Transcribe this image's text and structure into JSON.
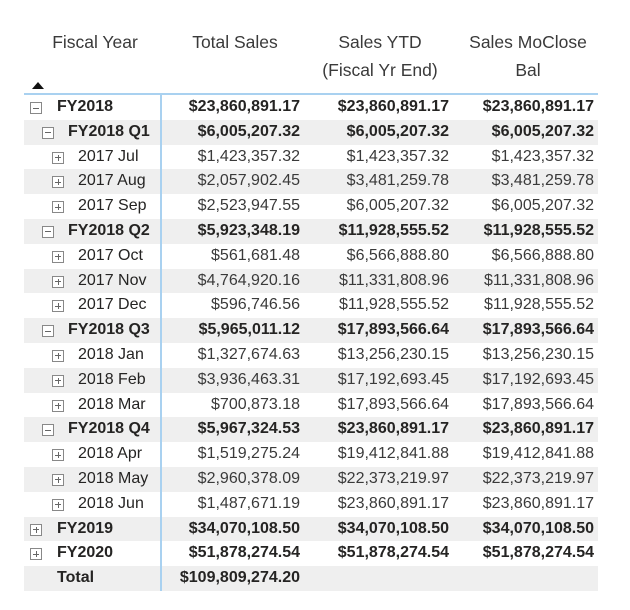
{
  "headers": {
    "fiscal_year": "Fiscal Year",
    "total_sales": "Total Sales",
    "sales_ytd": [
      "Sales YTD",
      "(Fiscal Yr End)"
    ],
    "sales_moclose": [
      "Sales MoClose",
      "Bal"
    ]
  },
  "sort": {
    "column": "Fiscal Year",
    "direction": "ascending"
  },
  "rows": [
    {
      "level": 0,
      "label": "FY2018",
      "expand": "collapse",
      "bold": true,
      "total": "$23,860,891.17",
      "ytd": "$23,860,891.17",
      "moclose": "$23,860,891.17"
    },
    {
      "level": 1,
      "label": "FY2018 Q1",
      "expand": "collapse",
      "bold": true,
      "total": "$6,005,207.32",
      "ytd": "$6,005,207.32",
      "moclose": "$6,005,207.32"
    },
    {
      "level": 2,
      "label": "2017 Jul",
      "expand": "expand",
      "bold": false,
      "total": "$1,423,357.32",
      "ytd": "$1,423,357.32",
      "moclose": "$1,423,357.32"
    },
    {
      "level": 2,
      "label": "2017 Aug",
      "expand": "expand",
      "bold": false,
      "total": "$2,057,902.45",
      "ytd": "$3,481,259.78",
      "moclose": "$3,481,259.78"
    },
    {
      "level": 2,
      "label": "2017 Sep",
      "expand": "expand",
      "bold": false,
      "total": "$2,523,947.55",
      "ytd": "$6,005,207.32",
      "moclose": "$6,005,207.32"
    },
    {
      "level": 1,
      "label": "FY2018 Q2",
      "expand": "collapse",
      "bold": true,
      "total": "$5,923,348.19",
      "ytd": "$11,928,555.52",
      "moclose": "$11,928,555.52"
    },
    {
      "level": 2,
      "label": "2017 Oct",
      "expand": "expand",
      "bold": false,
      "total": "$561,681.48",
      "ytd": "$6,566,888.80",
      "moclose": "$6,566,888.80"
    },
    {
      "level": 2,
      "label": "2017 Nov",
      "expand": "expand",
      "bold": false,
      "total": "$4,764,920.16",
      "ytd": "$11,331,808.96",
      "moclose": "$11,331,808.96"
    },
    {
      "level": 2,
      "label": "2017 Dec",
      "expand": "expand",
      "bold": false,
      "total": "$596,746.56",
      "ytd": "$11,928,555.52",
      "moclose": "$11,928,555.52"
    },
    {
      "level": 1,
      "label": "FY2018 Q3",
      "expand": "collapse",
      "bold": true,
      "total": "$5,965,011.12",
      "ytd": "$17,893,566.64",
      "moclose": "$17,893,566.64"
    },
    {
      "level": 2,
      "label": "2018 Jan",
      "expand": "expand",
      "bold": false,
      "total": "$1,327,674.63",
      "ytd": "$13,256,230.15",
      "moclose": "$13,256,230.15"
    },
    {
      "level": 2,
      "label": "2018 Feb",
      "expand": "expand",
      "bold": false,
      "total": "$3,936,463.31",
      "ytd": "$17,192,693.45",
      "moclose": "$17,192,693.45"
    },
    {
      "level": 2,
      "label": "2018 Mar",
      "expand": "expand",
      "bold": false,
      "total": "$700,873.18",
      "ytd": "$17,893,566.64",
      "moclose": "$17,893,566.64"
    },
    {
      "level": 1,
      "label": "FY2018 Q4",
      "expand": "collapse",
      "bold": true,
      "total": "$5,967,324.53",
      "ytd": "$23,860,891.17",
      "moclose": "$23,860,891.17"
    },
    {
      "level": 2,
      "label": "2018 Apr",
      "expand": "expand",
      "bold": false,
      "total": "$1,519,275.24",
      "ytd": "$19,412,841.88",
      "moclose": "$19,412,841.88"
    },
    {
      "level": 2,
      "label": "2018 May",
      "expand": "expand",
      "bold": false,
      "total": "$2,960,378.09",
      "ytd": "$22,373,219.97",
      "moclose": "$22,373,219.97"
    },
    {
      "level": 2,
      "label": "2018 Jun",
      "expand": "expand",
      "bold": false,
      "total": "$1,487,671.19",
      "ytd": "$23,860,891.17",
      "moclose": "$23,860,891.17"
    },
    {
      "level": 0,
      "label": "FY2019",
      "expand": "expand",
      "bold": true,
      "total": "$34,070,108.50",
      "ytd": "$34,070,108.50",
      "moclose": "$34,070,108.50"
    },
    {
      "level": 0,
      "label": "FY2020",
      "expand": "expand",
      "bold": true,
      "total": "$51,878,274.54",
      "ytd": "$51,878,274.54",
      "moclose": "$51,878,274.54"
    },
    {
      "level": -1,
      "label": "Total",
      "expand": "none",
      "bold": true,
      "total": "$109,809,274.20",
      "ytd": "",
      "moclose": ""
    }
  ]
}
